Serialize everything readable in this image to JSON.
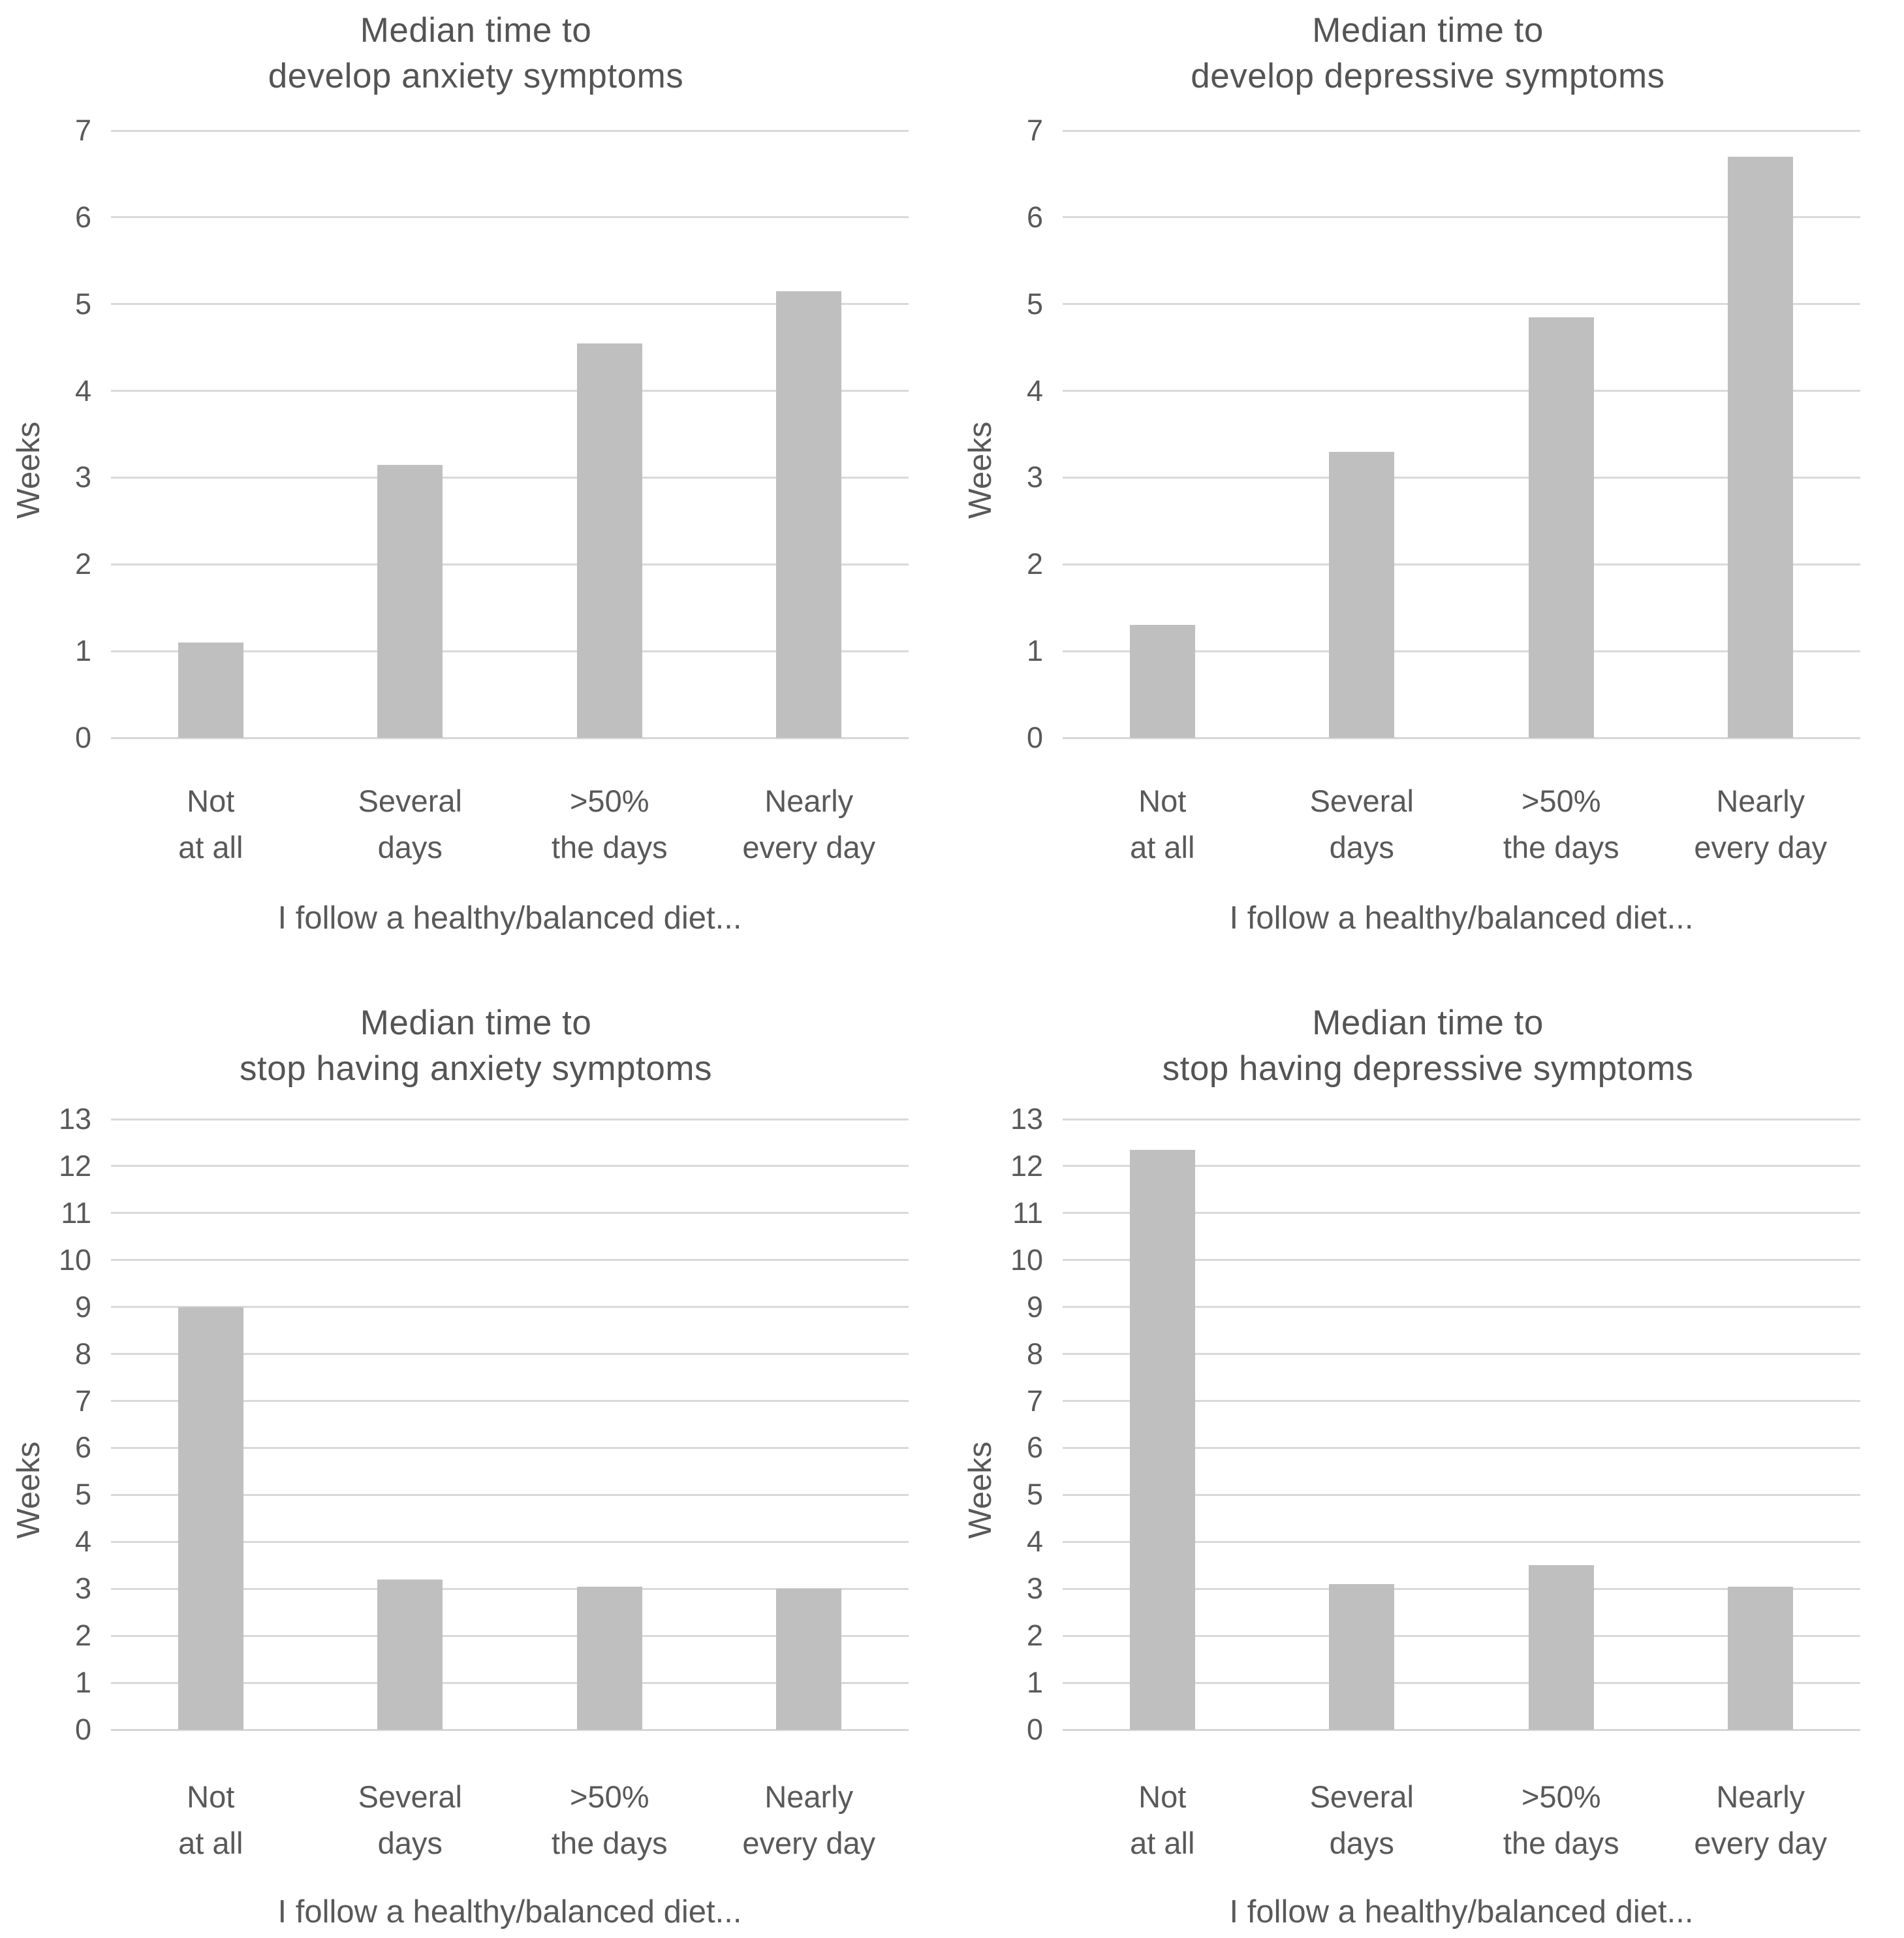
{
  "figure": {
    "background": "#ffffff",
    "text_color": "#595959",
    "bar_color": "#bfbfbf",
    "grid_color": "#d9d9d9"
  },
  "chart_data": [
    {
      "type": "bar",
      "title": "Median time to develop anxiety symptoms",
      "title_lines": [
        "Median time to",
        "develop anxiety symptoms"
      ],
      "categories": [
        "Not at all",
        "Several days",
        ">50% the days",
        "Nearly every day"
      ],
      "category_lines": [
        [
          "Not",
          "at all"
        ],
        [
          "Several",
          "days"
        ],
        [
          ">50%",
          "the days"
        ],
        [
          "Nearly",
          "every day"
        ]
      ],
      "values": [
        1.1,
        3.15,
        4.55,
        5.15
      ],
      "xlabel": "I follow a healthy/balanced diet...",
      "ylabel": "Weeks",
      "ylim": [
        0,
        7
      ],
      "ytick_step": 1,
      "grid": true,
      "legend": false,
      "bar_color": "#bfbfbf"
    },
    {
      "type": "bar",
      "title": "Median time to develop depressive symptoms",
      "title_lines": [
        "Median time to",
        "develop depressive symptoms"
      ],
      "categories": [
        "Not at all",
        "Several days",
        ">50% the days",
        "Nearly every day"
      ],
      "category_lines": [
        [
          "Not",
          "at all"
        ],
        [
          "Several",
          "days"
        ],
        [
          ">50%",
          "the days"
        ],
        [
          "Nearly",
          "every day"
        ]
      ],
      "values": [
        1.3,
        3.3,
        4.85,
        6.7
      ],
      "xlabel": "I follow a healthy/balanced diet...",
      "ylabel": "Weeks",
      "ylim": [
        0,
        7
      ],
      "ytick_step": 1,
      "grid": true,
      "legend": false,
      "bar_color": "#bfbfbf"
    },
    {
      "type": "bar",
      "title": "Median time to stop having anxiety symptoms",
      "title_lines": [
        "Median time to",
        "stop having anxiety symptoms"
      ],
      "categories": [
        "Not at all",
        "Several days",
        ">50% the days",
        "Nearly every day"
      ],
      "category_lines": [
        [
          "Not",
          "at all"
        ],
        [
          "Several",
          "days"
        ],
        [
          ">50%",
          "the days"
        ],
        [
          "Nearly",
          "every day"
        ]
      ],
      "values": [
        9.0,
        3.2,
        3.05,
        3.0
      ],
      "xlabel": "I follow a healthy/balanced diet...",
      "ylabel": "Weeks",
      "ylim": [
        0,
        13
      ],
      "ytick_step": 1,
      "grid": true,
      "legend": false,
      "bar_color": "#bfbfbf"
    },
    {
      "type": "bar",
      "title": "Median time to stop having depressive symptoms",
      "title_lines": [
        "Median time to",
        "stop having depressive symptoms"
      ],
      "categories": [
        "Not at all",
        "Several days",
        ">50% the days",
        "Nearly every day"
      ],
      "category_lines": [
        [
          "Not",
          "at all"
        ],
        [
          "Several",
          "days"
        ],
        [
          ">50%",
          "the days"
        ],
        [
          "Nearly",
          "every day"
        ]
      ],
      "values": [
        12.35,
        3.1,
        3.5,
        3.05
      ],
      "xlabel": "I follow a healthy/balanced diet...",
      "ylabel": "Weeks",
      "ylim": [
        0,
        13
      ],
      "ytick_step": 1,
      "grid": true,
      "legend": false,
      "bar_color": "#bfbfbf"
    }
  ]
}
